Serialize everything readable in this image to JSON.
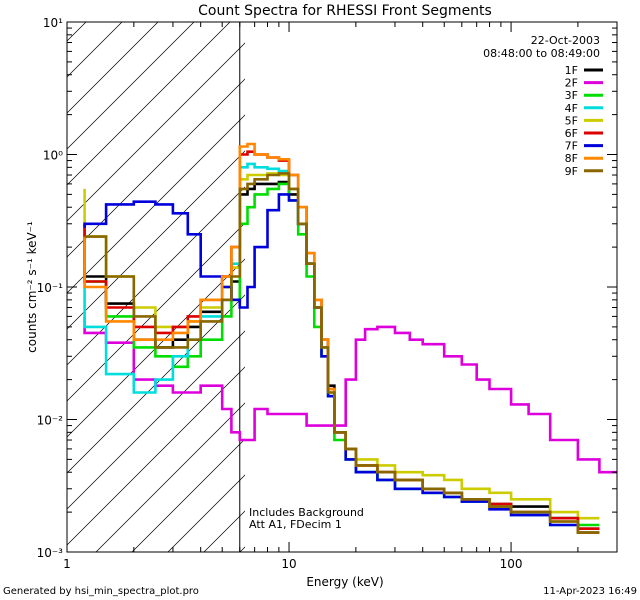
{
  "chart_data": {
    "type": "line",
    "title": "Count Spectra for RHESSI Front Segments",
    "xlabel": "Energy (keV)",
    "ylabel": "counts cm⁻² s⁻¹ keV⁻¹",
    "xscale": "log",
    "yscale": "log",
    "xlim": [
      1,
      300
    ],
    "ylim": [
      0.001,
      10
    ],
    "x_ticks": [
      {
        "value": 1,
        "label": "1"
      },
      {
        "value": 10,
        "label": "10"
      },
      {
        "value": 100,
        "label": "100"
      }
    ],
    "y_ticks": [
      {
        "value": 0.001,
        "label": "10⁻³"
      },
      {
        "value": 0.01,
        "label": "10⁻²"
      },
      {
        "value": 0.1,
        "label": "10⁻¹"
      },
      {
        "value": 1,
        "label": "10⁰"
      },
      {
        "value": 10,
        "label": "10¹"
      }
    ],
    "date": "22-Oct-2003",
    "time_range": "08:48:00 to 08:49:00",
    "annotations": [
      "Includes Background",
      "Att A1, FDecim 1"
    ],
    "attenuator_cutoff_keV": 6,
    "footer_left": "Generated by hsi_min_spectra_plot.pro",
    "footer_right": "11-Apr-2023 16:49",
    "legend_position": "top-right",
    "series": [
      {
        "name": "1F",
        "color": "#000000",
        "x": [
          1.2,
          1.5,
          2,
          2.5,
          3,
          3.5,
          4,
          5,
          5.5,
          6,
          6.5,
          7,
          8,
          9,
          10,
          11,
          12,
          13,
          14,
          15,
          16,
          18,
          20,
          25,
          30,
          40,
          50,
          60,
          80,
          100,
          150,
          200,
          250
        ],
        "y": [
          0.28,
          0.12,
          0.075,
          0.04,
          0.035,
          0.04,
          0.05,
          0.065,
          0.08,
          0.11,
          0.5,
          0.55,
          0.6,
          0.6,
          0.62,
          0.5,
          0.3,
          0.15,
          0.07,
          0.04,
          0.018,
          0.008,
          0.006,
          0.004,
          0.004,
          0.0035,
          0.003,
          0.0028,
          0.0025,
          0.0023,
          0.0022,
          0.0018,
          0.0015
        ]
      },
      {
        "name": "2F",
        "color": "#dd00dd",
        "x": [
          1.2,
          1.5,
          2,
          2.5,
          3,
          3.5,
          4,
          5,
          5.5,
          6,
          7,
          8,
          10,
          12,
          15,
          18,
          20,
          22,
          25,
          30,
          35,
          40,
          50,
          60,
          70,
          80,
          100,
          120,
          150,
          200,
          250,
          300
        ],
        "y": [
          0.06,
          0.045,
          0.038,
          0.02,
          0.018,
          0.016,
          0.016,
          0.018,
          0.012,
          0.008,
          0.007,
          0.012,
          0.011,
          0.011,
          0.009,
          0.009,
          0.02,
          0.04,
          0.048,
          0.05,
          0.045,
          0.04,
          0.037,
          0.03,
          0.026,
          0.02,
          0.017,
          0.013,
          0.011,
          0.007,
          0.005,
          0.004
        ]
      },
      {
        "name": "3F",
        "color": "#00dd00",
        "x": [
          1.2,
          1.5,
          2,
          2.5,
          3,
          3.5,
          4,
          5,
          5.5,
          6,
          6.5,
          7,
          8,
          9,
          10,
          11,
          12,
          13,
          14,
          15,
          16,
          18,
          20,
          25,
          30,
          40,
          50,
          60,
          80,
          100,
          150,
          200,
          250
        ],
        "y": [
          0.22,
          0.11,
          0.06,
          0.035,
          0.03,
          0.025,
          0.03,
          0.04,
          0.06,
          0.08,
          0.3,
          0.4,
          0.5,
          0.55,
          0.6,
          0.45,
          0.25,
          0.12,
          0.05,
          0.03,
          0.015,
          0.007,
          0.005,
          0.004,
          0.0035,
          0.003,
          0.0028,
          0.0026,
          0.0024,
          0.0022,
          0.002,
          0.0018,
          0.0016
        ]
      },
      {
        "name": "4F",
        "color": "#00dddd",
        "x": [
          1.2,
          1.5,
          2,
          2.5,
          3,
          3.5,
          4,
          5,
          5.5,
          6,
          6.5,
          7,
          8,
          9,
          10,
          11,
          12,
          13,
          14,
          15,
          16,
          18,
          20,
          25,
          30,
          40,
          50,
          60,
          80,
          100,
          150,
          200
        ],
        "y": [
          0.16,
          0.05,
          0.022,
          0.016,
          0.02,
          0.03,
          0.04,
          0.06,
          0.1,
          0.15,
          0.8,
          0.85,
          0.8,
          0.78,
          0.75,
          0.55,
          0.3,
          0.15,
          0.07,
          0.035,
          0.015,
          0.008,
          0.006,
          0.004,
          0.0035,
          0.003,
          0.0028,
          0.0026,
          0.0024,
          0.0022,
          0.0019,
          0.0016
        ]
      },
      {
        "name": "5F",
        "color": "#cccc00",
        "x": [
          1.2,
          1.5,
          2,
          2.5,
          3,
          3.5,
          4,
          5,
          5.5,
          6,
          6.5,
          7,
          8,
          9,
          10,
          11,
          12,
          13,
          14,
          15,
          16,
          18,
          20,
          25,
          30,
          40,
          50,
          60,
          80,
          100,
          150,
          200,
          250
        ],
        "y": [
          0.55,
          0.24,
          0.12,
          0.07,
          0.05,
          0.05,
          0.055,
          0.07,
          0.1,
          0.14,
          0.65,
          0.7,
          0.7,
          0.72,
          0.7,
          0.55,
          0.3,
          0.15,
          0.07,
          0.035,
          0.016,
          0.008,
          0.006,
          0.005,
          0.0045,
          0.004,
          0.0038,
          0.0035,
          0.003,
          0.0028,
          0.0025,
          0.002,
          0.0018
        ]
      },
      {
        "name": "6F",
        "color": "#dd0000",
        "x": [
          1.2,
          1.5,
          2,
          2.5,
          3,
          3.5,
          4,
          5,
          5.5,
          6,
          6.5,
          7,
          8,
          9,
          10,
          11,
          12,
          13,
          14,
          15,
          16,
          18,
          20,
          25,
          30,
          40,
          50,
          60,
          80,
          100,
          150,
          200,
          250
        ],
        "y": [
          0.3,
          0.11,
          0.07,
          0.05,
          0.045,
          0.05,
          0.06,
          0.08,
          0.12,
          0.2,
          1.0,
          1.05,
          1.0,
          0.95,
          0.9,
          0.7,
          0.4,
          0.18,
          0.08,
          0.04,
          0.017,
          0.008,
          0.006,
          0.0045,
          0.004,
          0.0035,
          0.003,
          0.0028,
          0.0025,
          0.0023,
          0.002,
          0.0018,
          0.0015
        ]
      },
      {
        "name": "7F",
        "color": "#0000dd",
        "x": [
          1.2,
          1.5,
          2,
          2.5,
          3,
          3.5,
          4,
          5,
          5.5,
          6,
          6.5,
          7,
          8,
          9,
          10,
          11,
          12,
          13,
          14,
          15,
          16,
          18,
          20,
          25,
          30,
          40,
          50,
          60,
          80,
          100,
          150,
          200,
          250
        ],
        "y": [
          0.28,
          0.3,
          0.42,
          0.44,
          0.42,
          0.36,
          0.25,
          0.12,
          0.1,
          0.08,
          0.07,
          0.1,
          0.2,
          0.38,
          0.5,
          0.45,
          0.3,
          0.15,
          0.07,
          0.03,
          0.015,
          0.008,
          0.005,
          0.004,
          0.0035,
          0.003,
          0.0028,
          0.0026,
          0.0024,
          0.0021,
          0.0019,
          0.0016,
          0.0014
        ]
      },
      {
        "name": "8F",
        "color": "#ff8800",
        "x": [
          1.2,
          1.5,
          2,
          2.5,
          3,
          3.5,
          4,
          5,
          5.5,
          6,
          6.5,
          7,
          8,
          9,
          10,
          11,
          12,
          13,
          14,
          15,
          16,
          18,
          20,
          25,
          30,
          40,
          50,
          60,
          80,
          100,
          150,
          200,
          250
        ],
        "y": [
          0.24,
          0.1,
          0.055,
          0.04,
          0.04,
          0.045,
          0.055,
          0.08,
          0.12,
          0.2,
          1.15,
          1.2,
          1.0,
          0.95,
          0.92,
          0.7,
          0.4,
          0.18,
          0.08,
          0.04,
          0.017,
          0.008,
          0.006,
          0.0045,
          0.004,
          0.0035,
          0.003,
          0.0028,
          0.0025,
          0.0022,
          0.002,
          0.0017,
          0.0014
        ]
      },
      {
        "name": "9F",
        "color": "#886600",
        "x": [
          1.2,
          1.5,
          2,
          2.5,
          3,
          3.5,
          4,
          5,
          5.5,
          6,
          6.5,
          7,
          8,
          9,
          10,
          11,
          12,
          13,
          14,
          15,
          16,
          18,
          20,
          25,
          30,
          40,
          50,
          60,
          80,
          100,
          150,
          200,
          250
        ],
        "y": [
          0.24,
          0.24,
          0.12,
          0.06,
          0.035,
          0.035,
          0.04,
          0.055,
          0.08,
          0.12,
          0.55,
          0.6,
          0.65,
          0.7,
          0.72,
          0.55,
          0.3,
          0.15,
          0.07,
          0.035,
          0.016,
          0.008,
          0.006,
          0.0045,
          0.004,
          0.0035,
          0.003,
          0.0028,
          0.0025,
          0.0022,
          0.002,
          0.0017,
          0.0014
        ]
      }
    ]
  }
}
